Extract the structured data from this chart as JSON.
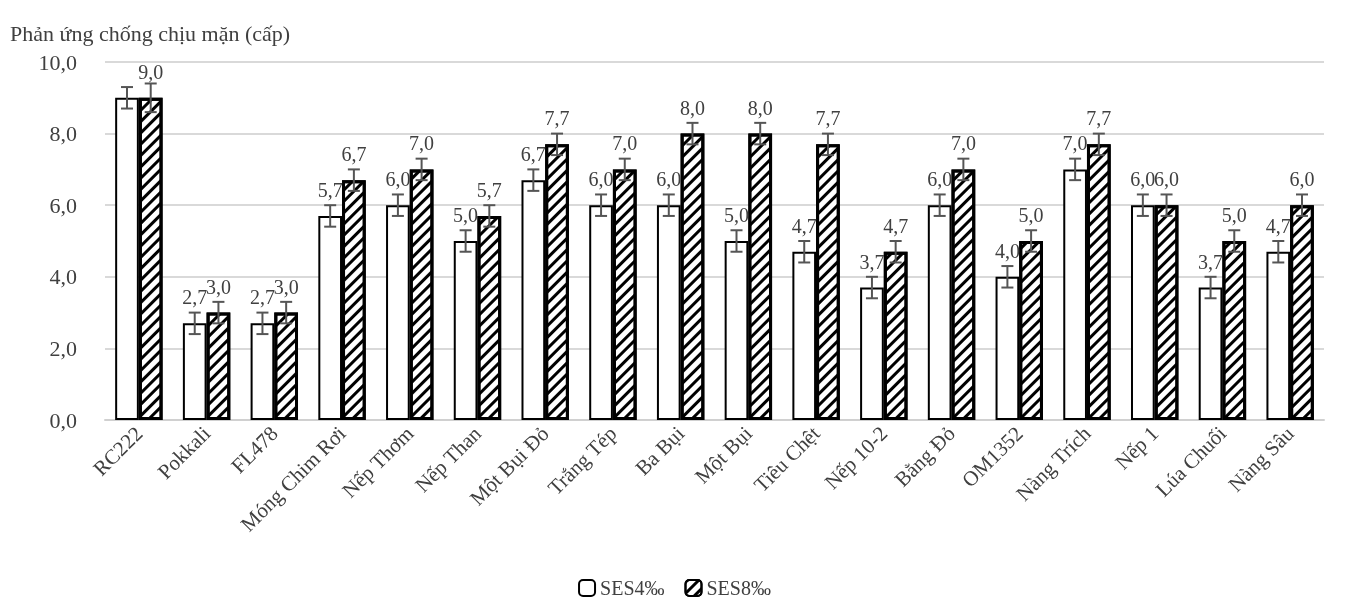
{
  "chart_data": {
    "type": "bar",
    "ylabel": "Phản ứng chống chịu mặn (cấp)",
    "categories": [
      "RC222",
      "Pokkali",
      "FL478",
      "Móng Chim Rơi",
      "Nếp Thơm",
      "Nếp Than",
      "Một Bụi Đỏ",
      "Trắng Tép",
      "Ba Bụi",
      "Một Bụi",
      "Tiêu Chệt",
      "Nếp 10-2",
      "Bằng Đỏ",
      "OM1352",
      "Nàng Trích",
      "Nếp 1",
      "Lúa Chuối",
      "Nàng Sâu"
    ],
    "series": [
      {
        "name": "SES4‰",
        "color": "#ffffff",
        "values": [
          9.0,
          2.7,
          2.7,
          5.7,
          6.0,
          5.0,
          6.7,
          6.0,
          6.0,
          5.0,
          4.7,
          3.7,
          6.0,
          4.0,
          7.0,
          6.0,
          3.7,
          4.7
        ],
        "errors": [
          0.3,
          0.3,
          0.3,
          0.3,
          0.3,
          0.3,
          0.3,
          0.3,
          0.3,
          0.3,
          0.3,
          0.3,
          0.3,
          0.3,
          0.3,
          0.3,
          0.3,
          0.3
        ],
        "value_labels": [
          null,
          "2,7",
          "2,7",
          "5,7",
          "6,0",
          "5,0",
          "6,7",
          "6,0",
          "6,0",
          "5,0",
          "4,7",
          "3,7",
          "6,0",
          "4,0",
          "7,0",
          "6,0",
          "3,7",
          "4,7"
        ]
      },
      {
        "name": "SES8‰",
        "color": "#000000",
        "values": [
          9.0,
          3.0,
          3.0,
          6.7,
          7.0,
          5.7,
          7.7,
          7.0,
          8.0,
          8.0,
          7.7,
          4.7,
          7.0,
          5.0,
          7.7,
          6.0,
          5.0,
          6.0
        ],
        "errors": [
          0.4,
          0.3,
          0.3,
          0.3,
          0.3,
          0.3,
          0.3,
          0.3,
          0.3,
          0.3,
          0.3,
          0.3,
          0.3,
          0.3,
          0.3,
          0.3,
          0.3,
          0.3
        ],
        "value_labels": [
          "9,0",
          "3,0",
          "3,0",
          "6,7",
          "7,0",
          "5,7",
          "7,7",
          "7,0",
          "8,0",
          "8,0",
          "7,7",
          "4,7",
          "7,0",
          "5,0",
          "7,7",
          "6,0",
          "5,0",
          "6,0"
        ]
      }
    ],
    "ylim": [
      0,
      10
    ],
    "yticks": [
      {
        "value": 0,
        "label": "0,0"
      },
      {
        "value": 2,
        "label": "2,0"
      },
      {
        "value": 4,
        "label": "4,0"
      },
      {
        "value": 6,
        "label": "6,0"
      },
      {
        "value": 8,
        "label": "8,0"
      },
      {
        "value": 10,
        "label": "10,0"
      }
    ],
    "grid": "y",
    "legend": "bottom"
  }
}
